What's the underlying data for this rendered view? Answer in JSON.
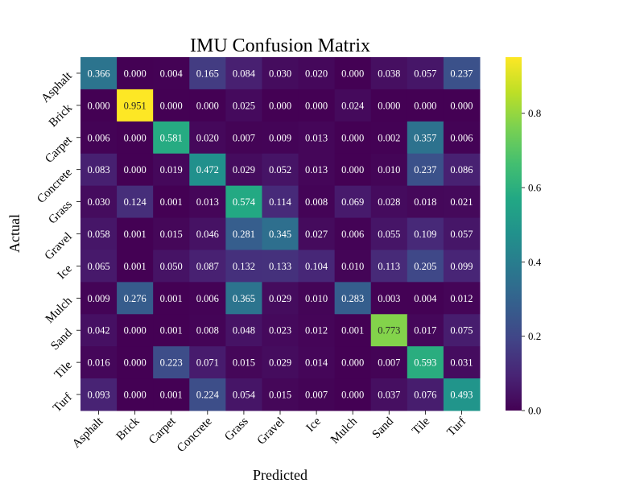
{
  "chart_data": {
    "type": "heatmap",
    "title": "IMU Confusion Matrix",
    "xlabel": "Predicted",
    "ylabel": "Actual",
    "x_categories": [
      "Asphalt",
      "Brick",
      "Carpet",
      "Concrete",
      "Grass",
      "Gravel",
      "Ice",
      "Mulch",
      "Sand",
      "Tile",
      "Turf"
    ],
    "y_categories": [
      "Asphalt",
      "Brick",
      "Carpet",
      "Concrete",
      "Grass",
      "Gravel",
      "Ice",
      "Mulch",
      "Sand",
      "Tile",
      "Turf"
    ],
    "values": [
      [
        0.366,
        0.0,
        0.004,
        0.165,
        0.084,
        0.03,
        0.02,
        0.0,
        0.038,
        0.057,
        0.237
      ],
      [
        0.0,
        0.951,
        0.0,
        0.0,
        0.025,
        0.0,
        0.0,
        0.024,
        0.0,
        0.0,
        0.0
      ],
      [
        0.006,
        0.0,
        0.581,
        0.02,
        0.007,
        0.009,
        0.013,
        0.0,
        0.002,
        0.357,
        0.006
      ],
      [
        0.083,
        0.0,
        0.019,
        0.472,
        0.029,
        0.052,
        0.013,
        0.0,
        0.01,
        0.237,
        0.086
      ],
      [
        0.03,
        0.124,
        0.001,
        0.013,
        0.574,
        0.114,
        0.008,
        0.069,
        0.028,
        0.018,
        0.021
      ],
      [
        0.058,
        0.001,
        0.015,
        0.046,
        0.281,
        0.345,
        0.027,
        0.006,
        0.055,
        0.109,
        0.057
      ],
      [
        0.065,
        0.001,
        0.05,
        0.087,
        0.132,
        0.133,
        0.104,
        0.01,
        0.113,
        0.205,
        0.099
      ],
      [
        0.009,
        0.276,
        0.001,
        0.006,
        0.365,
        0.029,
        0.01,
        0.283,
        0.003,
        0.004,
        0.012
      ],
      [
        0.042,
        0.0,
        0.001,
        0.008,
        0.048,
        0.023,
        0.012,
        0.001,
        0.773,
        0.017,
        0.075
      ],
      [
        0.016,
        0.0,
        0.223,
        0.071,
        0.015,
        0.029,
        0.014,
        0.0,
        0.007,
        0.593,
        0.031
      ],
      [
        0.093,
        0.0,
        0.001,
        0.224,
        0.054,
        0.015,
        0.007,
        0.0,
        0.037,
        0.076,
        0.493
      ]
    ],
    "value_format": "3 decimals",
    "colormap": "viridis",
    "vmin": 0.0,
    "vmax": 0.951,
    "colorbar_ticks": [
      "0.0",
      "0.2",
      "0.4",
      "0.6",
      "0.8"
    ],
    "colorbar_tick_values": [
      0.0,
      0.2,
      0.4,
      0.6,
      0.8
    ],
    "grid": false,
    "legend": "colorbar-right"
  }
}
